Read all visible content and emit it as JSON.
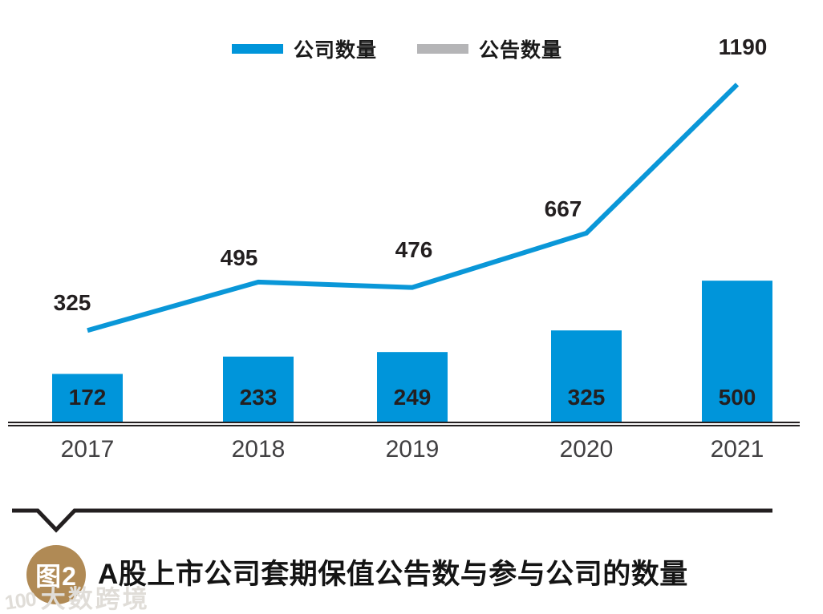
{
  "figure": {
    "badge": "图2",
    "title": "A股上市公司套期保值公告数与参与公司的数量",
    "watermark_logo": "100",
    "watermark_text": "大数跨境"
  },
  "legend": {
    "items": [
      {
        "label": "公司数量",
        "color": "#0095da"
      },
      {
        "label": "公告数量",
        "color": "#b5b5b7"
      }
    ]
  },
  "chart_data": {
    "type": "bar+line",
    "title": "A股上市公司套期保值公告数与参与公司的数量",
    "categories": [
      "2017",
      "2018",
      "2019",
      "2020",
      "2021"
    ],
    "series": [
      {
        "name": "公司数量",
        "type": "bar",
        "color": "#0095da",
        "values": [
          172,
          233,
          249,
          325,
          500
        ]
      },
      {
        "name": "公告数量",
        "type": "line",
        "color": "#0a97d8",
        "legend_color": "#b5b5b7",
        "values": [
          325,
          495,
          476,
          667,
          1190
        ]
      }
    ],
    "value_labels": true,
    "xlabel": "",
    "ylabel": "",
    "ylim": [
      0,
      1400
    ],
    "grid": false,
    "legend_position": "top-center",
    "axis_color": "#231f20"
  },
  "colors": {
    "accent_blue": "#0095da",
    "legend_gray": "#b5b5b7",
    "ink": "#231f20",
    "badge_tan": "#b08a55",
    "watermark_gray": "#e0ddd8"
  }
}
